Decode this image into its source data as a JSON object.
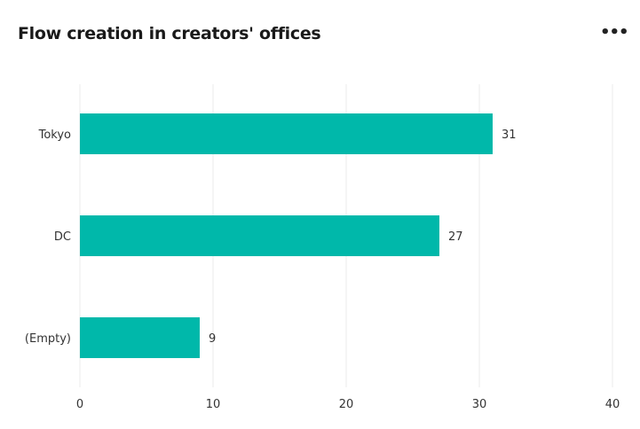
{
  "header": {
    "title": "Flow creation in creators' offices",
    "menu_icon": "more-horizontal-icon"
  },
  "chart_data": {
    "type": "bar",
    "orientation": "horizontal",
    "title": "Flow creation in creators' offices",
    "categories": [
      "Tokyo",
      "DC",
      "(Empty)"
    ],
    "values": [
      31,
      27,
      9
    ],
    "xlim": [
      0,
      40
    ],
    "xticks": [
      0,
      10,
      20,
      30,
      40
    ],
    "grid": true,
    "data_labels": true,
    "color": "#00b8aa"
  }
}
